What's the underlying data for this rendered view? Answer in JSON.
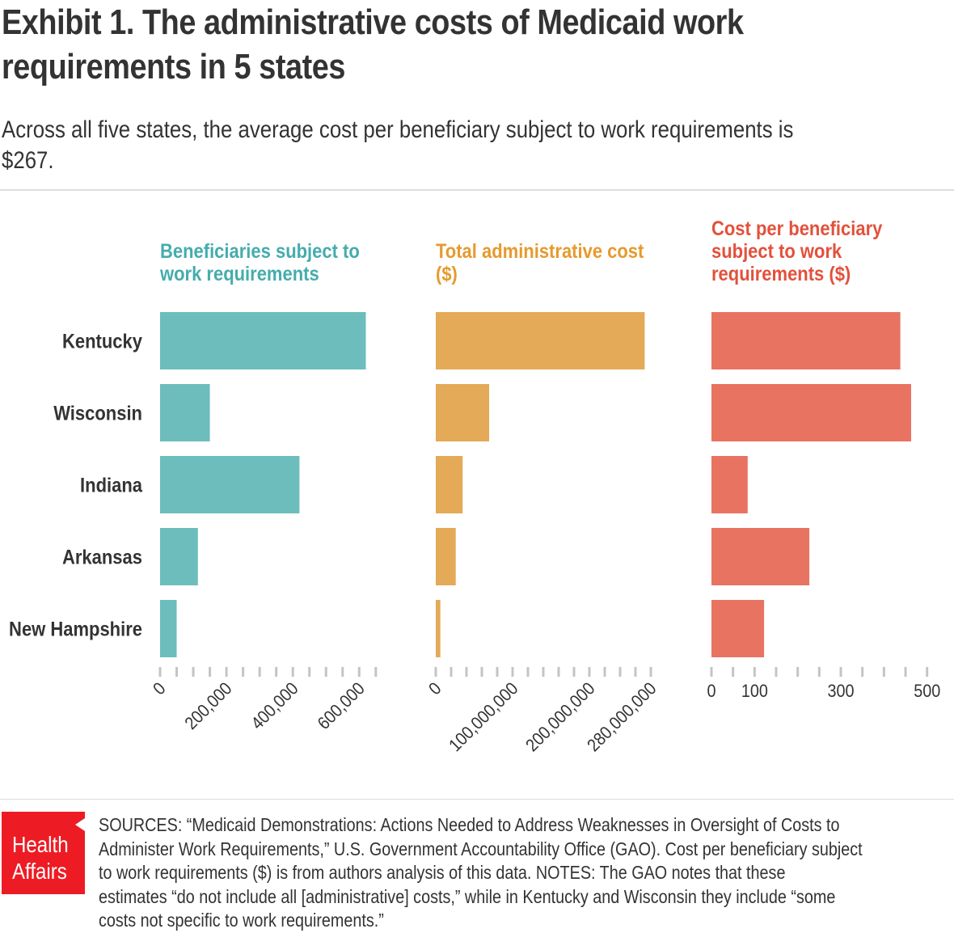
{
  "title": "Exhibit 1. The administrative costs of Medicaid work requirements in 5 states",
  "title_lines": [
    "Exhibit 1. The administrative costs of Medicaid work",
    "requirements in 5 states"
  ],
  "subtitle_lines": [
    "Across all five states, the average cost per beneficiary subject to work requirements is",
    "$267."
  ],
  "footer": {
    "logo_lines": [
      "Health",
      "Affairs"
    ],
    "source_lines": [
      "SOURCES: “Medicaid Demonstrations: Actions Needed to Address Weaknesses in Oversight of Costs to",
      "Administer Work Requirements,” U.S. Government Accountability Office (GAO). Cost per beneficiary subject",
      "to work requirements ($) is from authors analysis of this data. NOTES: The GAO notes that these",
      "estimates “do not include all [administrative] costs,” while in Kentucky and Wisconsin they include “some",
      "costs not specific to work requirements.”"
    ]
  },
  "colors": {
    "beneficiaries": "#6dbdbd",
    "beneficiaries_title": "#45acac",
    "admin_cost": "#e4aa57",
    "admin_cost_title": "#e69a2e",
    "cost_per": "#e87361",
    "cost_per_title": "#e2513c",
    "tick": "#c4c4c4",
    "text": "#333333",
    "logo": "#ed1c24"
  },
  "chart_data": {
    "type": "bar",
    "orientation": "horizontal",
    "title": "Exhibit 1. The administrative costs of Medicaid work requirements in 5 states",
    "subtitle": "Across all five states, the average cost per beneficiary subject to work requirements is $267.",
    "categories": [
      "Kentucky",
      "Wisconsin",
      "Indiana",
      "Arkansas",
      "New Hampshire"
    ],
    "panels": [
      {
        "name": "Beneficiaries subject to work requirements",
        "title_lines": [
          "Beneficiaries subject to",
          "work requirements"
        ],
        "values": [
          620000,
          150000,
          420000,
          114000,
          50000
        ],
        "xlim": [
          0,
          650000
        ],
        "minor_tick_step": 50000,
        "tick_labels": [
          {
            "value": 0,
            "label": "0"
          },
          {
            "value": 200000,
            "label": "200,000"
          },
          {
            "value": 400000,
            "label": "400,000"
          },
          {
            "value": 600000,
            "label": "600,000"
          }
        ],
        "tick_label_rotation": "diagonal",
        "color_key": "beneficiaries"
      },
      {
        "name": "Total administrative cost ($)",
        "title_lines": [
          "Total administrative cost",
          "($)"
        ],
        "values": [
          272000000,
          69500000,
          35000000,
          26000000,
          6000000
        ],
        "xlim": [
          0,
          280000000
        ],
        "minor_tick_step": 20000000,
        "tick_labels": [
          {
            "value": 0,
            "label": "0"
          },
          {
            "value": 100000000,
            "label": "100,000,000"
          },
          {
            "value": 200000000,
            "label": "200,000,000"
          },
          {
            "value": 280000000,
            "label": "280,000,000"
          }
        ],
        "tick_label_rotation": "diagonal",
        "color_key": "admin_cost"
      },
      {
        "name": "Cost per beneficiary subject to work requirements ($)",
        "title_lines": [
          "Cost per beneficiary",
          "subject to work",
          "requirements ($)"
        ],
        "values": [
          438,
          463,
          84,
          227,
          122
        ],
        "xlim": [
          0,
          500
        ],
        "minor_tick_step": 50,
        "tick_labels": [
          {
            "value": 0,
            "label": "0"
          },
          {
            "value": 100,
            "label": "100"
          },
          {
            "value": 300,
            "label": "300"
          },
          {
            "value": 500,
            "label": "500"
          }
        ],
        "tick_label_rotation": "horizontal",
        "color_key": "cost_per"
      }
    ],
    "grid": false,
    "legend": "none"
  }
}
